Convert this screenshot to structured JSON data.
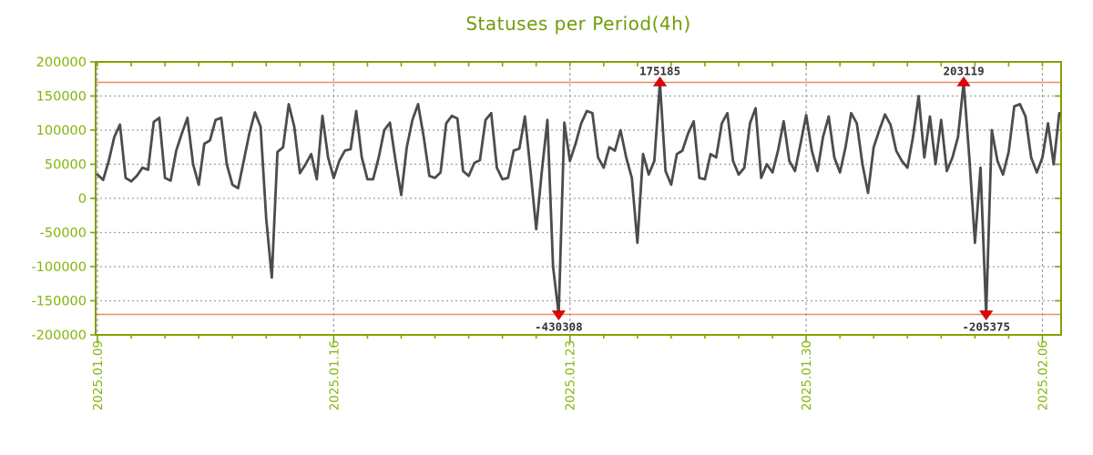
{
  "title": "Statuses per Period(4h)",
  "chart_data": {
    "type": "line",
    "title": "Statuses per Period(4h)",
    "period_hours": 4,
    "points_per_day": 6,
    "ylim": [
      -200000,
      200000
    ],
    "y_ticks": [
      -200000,
      -150000,
      -100000,
      -50000,
      0,
      50000,
      100000,
      150000,
      200000
    ],
    "y_tick_labels": [
      "-200000",
      "-150000",
      "-100000",
      "-50000",
      "0",
      "50000",
      "100000",
      "150000",
      "200000"
    ],
    "x_tick_labels": [
      "2025.01.09",
      "2025.01.16",
      "2025.01.23",
      "2025.01.30",
      "2025.02.06"
    ],
    "x_tick_indices": [
      0,
      42,
      84,
      126,
      168
    ],
    "minor_tick_every": 6,
    "grid": true,
    "threshold_lines": [
      170000,
      -170000
    ],
    "clamp": 170000,
    "colors": {
      "series": "#4c4c4c",
      "threshold": "#f0896a",
      "marker": "#e60000",
      "axis": "#82a105",
      "tick_label": "#84b40a",
      "title": "#6f9d08",
      "grid": "#a0a0a0",
      "annotation_text": "#333333",
      "background": "#ffffff"
    },
    "values": [
      35000,
      27000,
      55000,
      90000,
      108000,
      30000,
      25000,
      33000,
      45000,
      42000,
      112000,
      118000,
      30000,
      26000,
      70000,
      95000,
      118000,
      50000,
      20000,
      80000,
      85000,
      115000,
      118000,
      50000,
      20000,
      15000,
      55000,
      95000,
      126000,
      105000,
      -30000,
      -116000,
      68000,
      75000,
      138000,
      105000,
      37000,
      50000,
      65000,
      28000,
      121000,
      60000,
      30000,
      55000,
      70000,
      72000,
      128000,
      60000,
      28000,
      28000,
      60000,
      100000,
      111000,
      55000,
      5000,
      75000,
      115000,
      138000,
      90000,
      33000,
      30000,
      38000,
      110000,
      121000,
      117000,
      40000,
      33000,
      52000,
      56000,
      115000,
      125000,
      45000,
      28000,
      30000,
      70000,
      73000,
      120000,
      40000,
      -45000,
      40000,
      115000,
      -100000,
      -430308,
      111000,
      55000,
      80000,
      110000,
      128000,
      125000,
      60000,
      45000,
      75000,
      70000,
      100000,
      60000,
      30000,
      -65000,
      65000,
      35000,
      55000,
      175185,
      40000,
      20000,
      65000,
      70000,
      95000,
      113000,
      30000,
      28000,
      65000,
      60000,
      110000,
      125000,
      55000,
      35000,
      45000,
      110000,
      132000,
      30000,
      50000,
      38000,
      70000,
      113000,
      55000,
      40000,
      80000,
      122000,
      70000,
      40000,
      90000,
      120000,
      60000,
      38000,
      75000,
      125000,
      110000,
      50000,
      8000,
      75000,
      100000,
      123000,
      108000,
      70000,
      55000,
      45000,
      90000,
      150000,
      60000,
      120000,
      50000,
      115000,
      40000,
      60000,
      90000,
      203119,
      60000,
      -65000,
      45000,
      -205375,
      100000,
      55000,
      35000,
      68000,
      135000,
      138000,
      120000,
      60000,
      38000,
      60000,
      110000,
      50000,
      125000
    ],
    "annotations": [
      {
        "index": 82,
        "value": -430308,
        "label": "-430308",
        "direction": "down"
      },
      {
        "index": 100,
        "value": 175185,
        "label": "175185",
        "direction": "up"
      },
      {
        "index": 154,
        "value": 203119,
        "label": "203119",
        "direction": "up"
      },
      {
        "index": 158,
        "value": -205375,
        "label": "-205375",
        "direction": "down"
      }
    ]
  }
}
